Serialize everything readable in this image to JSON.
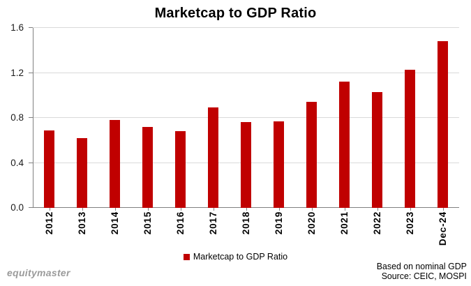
{
  "title": "Marketcap to GDP Ratio",
  "legend": {
    "label": "Marketcap to GDP Ratio"
  },
  "footer": {
    "brand": "equitymaster",
    "note_line1": "Based on nominal GDP",
    "note_line2": "Source: CEIC, MOSPI"
  },
  "colors": {
    "bar": "#C00000",
    "gridline": "#D9D9D9",
    "axis": "#808080",
    "brand_text": "#9B9B9B"
  },
  "chart_data": {
    "type": "bar",
    "title": "Marketcap to GDP Ratio",
    "series_name": "Marketcap to GDP Ratio",
    "categories": [
      "2012",
      "2013",
      "2014",
      "2015",
      "2016",
      "2017",
      "2018",
      "2019",
      "2020",
      "2021",
      "2022",
      "2023",
      "Dec-24"
    ],
    "values": [
      0.69,
      0.62,
      0.78,
      0.72,
      0.68,
      0.89,
      0.76,
      0.77,
      0.94,
      1.12,
      1.03,
      1.23,
      1.48
    ],
    "xlabel": "",
    "ylabel": "",
    "ylim": [
      0,
      1.6
    ],
    "yticks": [
      0,
      0.4,
      0.8,
      1.2,
      1.6
    ],
    "ytick_labels": [
      "0.0",
      "0.4",
      "0.8",
      "1.2",
      "1.6"
    ],
    "grid": true,
    "legend_position": "bottom",
    "x_tick_label_rotation_deg": 90
  }
}
